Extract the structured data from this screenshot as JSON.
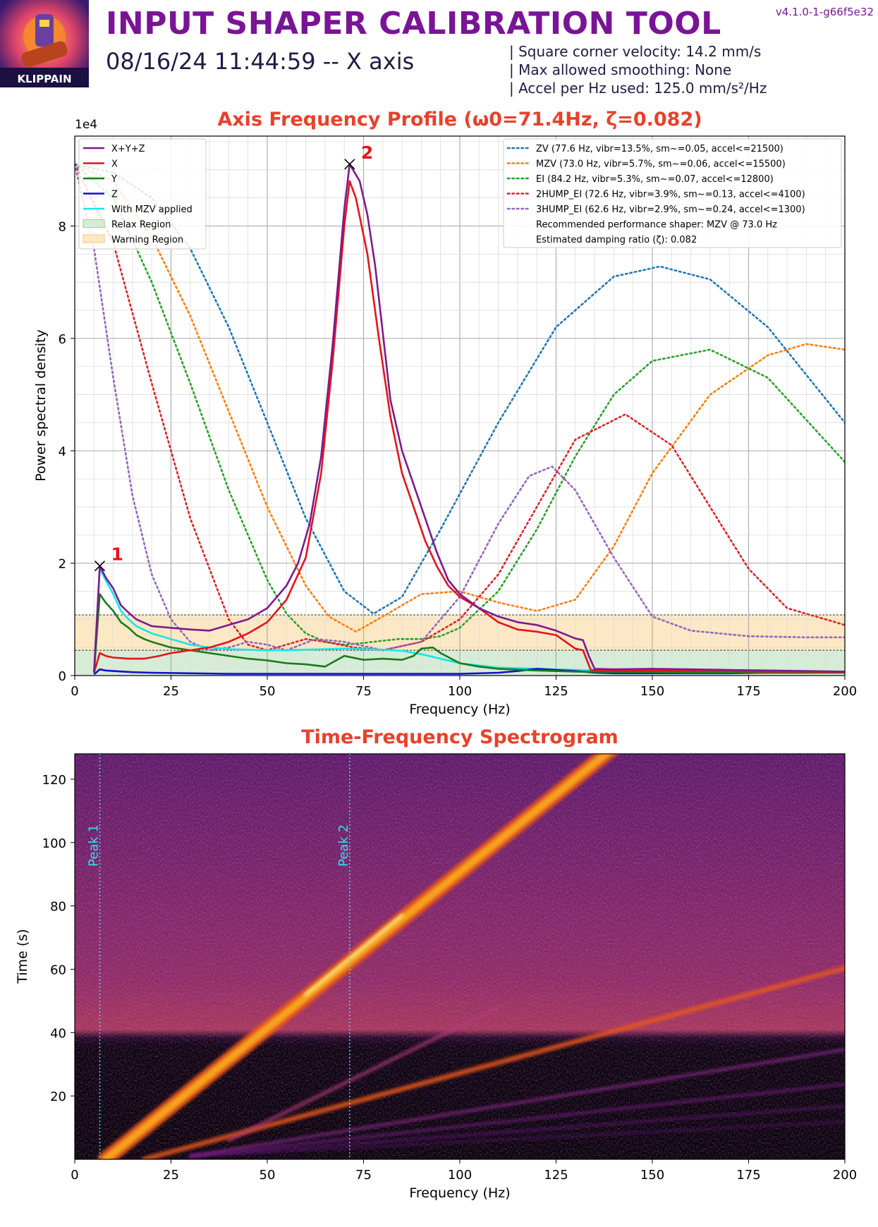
{
  "header": {
    "logo_text": "KLIPPAIN",
    "title": "INPUT SHAPER CALIBRATION TOOL",
    "datetime": "08/16/24 11:44:59 -- X axis",
    "version": "v4.1.0-1-g66f5e32",
    "params": [
      "| Square corner velocity: 14.2 mm/s",
      "| Max allowed smoothing: None",
      "| Accel per Hz used: 125.0 mm/s²/Hz"
    ]
  },
  "chart_data": [
    {
      "type": "line",
      "title": "Axis Frequency Profile (ω0=71.4Hz, ζ=0.082)",
      "xlabel": "Frequency (Hz)",
      "ylabel": "Power spectral density",
      "y_multiplier": "1e4",
      "xlim": [
        0,
        200
      ],
      "ylim": [
        0,
        9.6
      ],
      "xticks": [
        0,
        25,
        50,
        75,
        100,
        125,
        150,
        175,
        200
      ],
      "yticks": [
        0,
        2,
        4,
        6,
        8
      ],
      "grid": true,
      "series": [
        {
          "name": "X+Y+Z",
          "color": "#7b1b8e",
          "style": "solid",
          "x": [
            5,
            6.5,
            8,
            10,
            12,
            14,
            16,
            20,
            25,
            30,
            35,
            40,
            45,
            50,
            55,
            58,
            61,
            64,
            67,
            70,
            71.4,
            74,
            76,
            78,
            80,
            82,
            85,
            88,
            91,
            94,
            97,
            100,
            105,
            110,
            115,
            120,
            125,
            130,
            132,
            133.5,
            135,
            140,
            150,
            160,
            170,
            180,
            190,
            200
          ],
          "y": [
            0.05,
            1.95,
            1.75,
            1.55,
            1.25,
            1.12,
            1.0,
            0.88,
            0.85,
            0.82,
            0.8,
            0.9,
            1.0,
            1.2,
            1.6,
            2.0,
            2.7,
            3.9,
            5.9,
            8.3,
            9.1,
            8.8,
            8.2,
            7.3,
            6.1,
            4.9,
            4.0,
            3.4,
            2.8,
            2.2,
            1.7,
            1.45,
            1.2,
            1.05,
            0.95,
            0.9,
            0.8,
            0.66,
            0.63,
            0.35,
            0.12,
            0.11,
            0.12,
            0.11,
            0.1,
            0.09,
            0.08,
            0.07
          ]
        },
        {
          "name": "X",
          "color": "#e3141b",
          "style": "solid",
          "x": [
            5,
            6.5,
            8,
            10,
            14,
            18,
            22,
            25,
            30,
            35,
            40,
            45,
            50,
            55,
            60,
            64,
            67,
            70,
            71.4,
            73,
            76,
            79,
            82,
            85,
            88,
            91,
            94,
            97,
            100,
            105,
            110,
            115,
            120,
            125,
            130,
            132,
            134,
            140,
            150,
            160,
            170,
            180,
            190,
            200
          ],
          "y": [
            0.05,
            0.4,
            0.35,
            0.32,
            0.3,
            0.3,
            0.35,
            0.4,
            0.45,
            0.5,
            0.6,
            0.75,
            0.95,
            1.35,
            2.1,
            3.6,
            5.6,
            8.0,
            8.8,
            8.5,
            7.5,
            6.0,
            4.6,
            3.6,
            3.0,
            2.4,
            1.95,
            1.6,
            1.4,
            1.2,
            0.95,
            0.82,
            0.78,
            0.72,
            0.48,
            0.45,
            0.1,
            0.09,
            0.09,
            0.08,
            0.08,
            0.07,
            0.07,
            0.06
          ]
        },
        {
          "name": "Y",
          "color": "#1a7a1a",
          "style": "solid",
          "x": [
            5,
            6.5,
            8,
            10,
            12,
            14,
            16,
            18,
            20,
            25,
            30,
            35,
            40,
            45,
            50,
            55,
            60,
            65,
            70,
            75,
            80,
            85,
            88,
            90,
            93,
            95,
            100,
            105,
            110,
            120,
            130,
            140,
            150,
            160,
            170,
            180,
            190,
            200
          ],
          "y": [
            0.05,
            1.45,
            1.3,
            1.15,
            0.95,
            0.85,
            0.72,
            0.65,
            0.6,
            0.5,
            0.45,
            0.4,
            0.35,
            0.3,
            0.27,
            0.22,
            0.2,
            0.16,
            0.35,
            0.28,
            0.3,
            0.28,
            0.35,
            0.48,
            0.5,
            0.4,
            0.22,
            0.16,
            0.12,
            0.09,
            0.07,
            0.06,
            0.06,
            0.05,
            0.05,
            0.05,
            0.05,
            0.05
          ]
        },
        {
          "name": "Z",
          "color": "#1111cc",
          "style": "solid",
          "x": [
            5,
            6.5,
            8,
            10,
            15,
            20,
            30,
            40,
            50,
            60,
            70,
            80,
            90,
            100,
            110,
            115,
            120,
            125,
            130,
            135,
            140,
            150,
            160,
            170,
            180,
            190,
            200
          ],
          "y": [
            0.02,
            0.11,
            0.09,
            0.08,
            0.06,
            0.05,
            0.04,
            0.03,
            0.03,
            0.03,
            0.03,
            0.03,
            0.03,
            0.03,
            0.05,
            0.08,
            0.12,
            0.1,
            0.08,
            0.05,
            0.04,
            0.04,
            0.04,
            0.04,
            0.05,
            0.05,
            0.06
          ]
        },
        {
          "name": "With MZV applied",
          "color": "#17e6e6",
          "style": "solid",
          "x": [
            5,
            6.5,
            8,
            10,
            12,
            14,
            16,
            20,
            25,
            30,
            35,
            40,
            45,
            50,
            55,
            60,
            65,
            70,
            75,
            80,
            85,
            90,
            95,
            100,
            105,
            110,
            115,
            120,
            125,
            130,
            135,
            140,
            150,
            160,
            170,
            180,
            190,
            200
          ],
          "y": [
            0.05,
            1.9,
            1.7,
            1.45,
            1.15,
            1.0,
            0.88,
            0.75,
            0.65,
            0.55,
            0.5,
            0.47,
            0.46,
            0.45,
            0.45,
            0.46,
            0.47,
            0.48,
            0.47,
            0.46,
            0.44,
            0.38,
            0.3,
            0.22,
            0.18,
            0.14,
            0.13,
            0.12,
            0.11,
            0.1,
            0.09,
            0.09,
            0.08,
            0.08,
            0.07,
            0.07,
            0.07,
            0.07
          ]
        },
        {
          "name": "ZV (77.6 Hz, vibr=13.5%, sm~=0.05, accel<=21500)",
          "color": "#1f77b4",
          "style": "dotted",
          "x": [
            0,
            10,
            20,
            30,
            40,
            50,
            60,
            70,
            77.6,
            85,
            95,
            110,
            125,
            140,
            152,
            165,
            180,
            200
          ],
          "y": [
            9.1,
            8.95,
            8.5,
            7.6,
            6.2,
            4.5,
            2.8,
            1.5,
            1.1,
            1.4,
            2.6,
            4.5,
            6.2,
            7.1,
            7.28,
            7.05,
            6.2,
            4.5
          ]
        },
        {
          "name": "MZV (73.0 Hz, vibr=5.7%, sm~=0.06, accel<=15500)",
          "color": "#ff7f0e",
          "style": "dotted",
          "x": [
            0,
            10,
            20,
            30,
            40,
            50,
            60,
            66,
            73,
            80,
            90,
            100,
            110,
            120,
            130,
            140,
            150,
            165,
            180,
            190,
            200
          ],
          "y": [
            9.1,
            8.8,
            7.8,
            6.4,
            4.7,
            3.0,
            1.6,
            1.05,
            0.78,
            1.05,
            1.45,
            1.5,
            1.3,
            1.15,
            1.35,
            2.3,
            3.6,
            5.0,
            5.7,
            5.9,
            5.8
          ]
        },
        {
          "name": "EI (84.2 Hz, vibr=5.3%, sm~=0.07, accel<=12800)",
          "color": "#2ca02c",
          "style": "dotted",
          "x": [
            0,
            10,
            20,
            30,
            40,
            50,
            55,
            60,
            65,
            70,
            75,
            80,
            84.2,
            90,
            95,
            100,
            110,
            120,
            130,
            140,
            150,
            165,
            180,
            200
          ],
          "y": [
            9.1,
            8.5,
            7.0,
            5.2,
            3.3,
            1.7,
            1.1,
            0.75,
            0.6,
            0.55,
            0.58,
            0.62,
            0.65,
            0.65,
            0.7,
            0.85,
            1.5,
            2.6,
            3.9,
            5.0,
            5.6,
            5.8,
            5.3,
            3.8
          ]
        },
        {
          "name": "2HUMP_EI (72.6 Hz, vibr=3.9%, sm~=0.13, accel<=4100)",
          "color": "#d62728",
          "style": "dotted",
          "x": [
            0,
            10,
            20,
            30,
            40,
            45,
            50,
            55,
            60,
            65,
            72.6,
            80,
            90,
            100,
            110,
            120,
            130,
            143,
            155,
            165,
            175,
            185,
            200
          ],
          "y": [
            9.1,
            7.7,
            5.2,
            2.8,
            1.0,
            0.55,
            0.45,
            0.55,
            0.65,
            0.6,
            0.5,
            0.45,
            0.6,
            1.0,
            1.8,
            3.0,
            4.2,
            4.65,
            4.1,
            3.0,
            1.9,
            1.2,
            0.9
          ]
        },
        {
          "name": "3HUMP_EI (62.6 Hz, vibr=2.9%, sm~=0.24, accel<=1300)",
          "color": "#9467bd",
          "style": "dotted",
          "x": [
            0,
            5,
            10,
            15,
            20,
            25,
            30,
            35,
            40,
            45,
            50,
            55,
            62.6,
            70,
            80,
            90,
            100,
            110,
            118,
            124,
            130,
            140,
            150,
            160,
            175,
            190,
            200
          ],
          "y": [
            9.1,
            7.6,
            5.3,
            3.2,
            1.8,
            1.0,
            0.6,
            0.45,
            0.5,
            0.6,
            0.55,
            0.45,
            0.65,
            0.6,
            0.45,
            0.6,
            1.4,
            2.7,
            3.55,
            3.72,
            3.3,
            2.1,
            1.05,
            0.8,
            0.7,
            0.68,
            0.68
          ]
        }
      ],
      "legend_extra": [
        "Recommended performance shaper: MZV @ 73.0 Hz",
        "Estimated damping ratio (ζ): 0.082"
      ],
      "legend_regions": [
        "Relax Region",
        "Warning Region"
      ],
      "regions": {
        "relax": {
          "ymin": 0,
          "ymax": 0.45,
          "color": "#d6ecd6"
        },
        "warning": {
          "ymin": 0.45,
          "ymax": 1.08,
          "color": "#fce8c4"
        }
      },
      "peaks": [
        {
          "label": "1",
          "freq": 6.5,
          "psd": 1.95
        },
        {
          "label": "2",
          "freq": 71.4,
          "psd": 9.1
        }
      ],
      "legend_position": [
        "top-left",
        "top-right"
      ]
    },
    {
      "type": "heatmap",
      "title": "Time-Frequency Spectrogram",
      "xlabel": "Frequency (Hz)",
      "ylabel": "Time (s)",
      "xlim": [
        0,
        200
      ],
      "ylim": [
        0,
        128
      ],
      "xticks": [
        0,
        25,
        50,
        75,
        100,
        125,
        150,
        175,
        200
      ],
      "yticks": [
        20,
        40,
        60,
        80,
        100,
        120
      ],
      "peak_markers": [
        {
          "label": "Peak 1",
          "freq": 6.5
        },
        {
          "label": "Peak 2",
          "freq": 71.4
        }
      ],
      "colormap": "inferno"
    }
  ]
}
